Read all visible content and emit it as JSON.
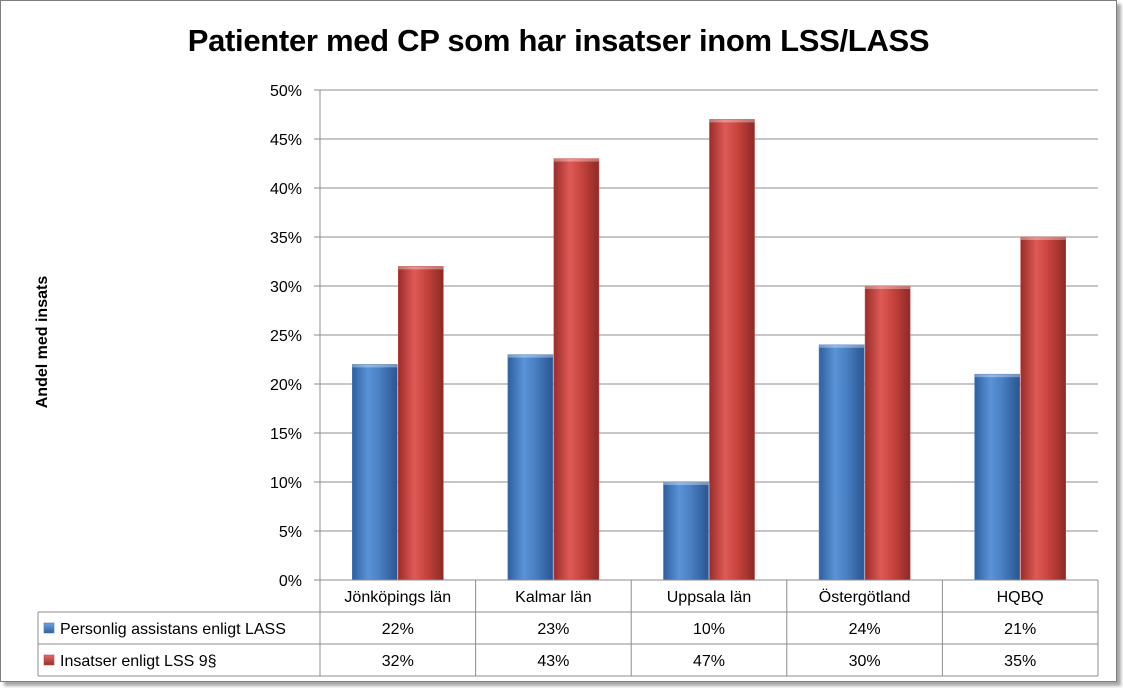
{
  "chart_data": {
    "type": "bar",
    "title": "Patienter med CP som har insatser inom LSS/LASS",
    "ylabel": "Andel med insats",
    "xlabel": "",
    "categories": [
      "Jönköpings län",
      "Kalmar län",
      "Uppsala län",
      "Östergötland",
      "HQBQ"
    ],
    "series": [
      {
        "name": "Personlig assistans enligt LASS",
        "values": [
          22,
          23,
          10,
          24,
          21
        ],
        "value_labels": [
          "22%",
          "23%",
          "10%",
          "24%",
          "21%"
        ],
        "color": "#4a7ebb"
      },
      {
        "name": "Insatser enligt LSS 9§",
        "values": [
          32,
          43,
          47,
          30,
          35
        ],
        "value_labels": [
          "32%",
          "43%",
          "47%",
          "30%",
          "35%"
        ],
        "color": "#be4b48"
      }
    ],
    "ylim": [
      0,
      50
    ],
    "yticks": [
      "0%",
      "5%",
      "10%",
      "15%",
      "20%",
      "25%",
      "30%",
      "35%",
      "40%",
      "45%",
      "50%"
    ],
    "grid": true,
    "legend": "data-table-below"
  }
}
